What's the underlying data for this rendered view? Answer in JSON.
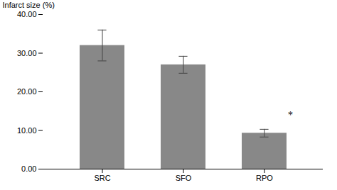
{
  "chart_data": {
    "type": "bar",
    "categories": [
      "SRC",
      "SFO",
      "RPO"
    ],
    "values": [
      32.0,
      27.0,
      9.3
    ],
    "errors": [
      4.0,
      2.2,
      1.0
    ],
    "color": "#888888",
    "ylabel": "Infarct size (%)",
    "ylim": [
      0,
      40
    ],
    "yticks": [
      {
        "value": 0,
        "label": "0.00"
      },
      {
        "value": 10,
        "label": "10.00"
      },
      {
        "value": 20,
        "label": "20.00"
      },
      {
        "value": 30,
        "label": "30.00"
      },
      {
        "value": 40,
        "label": "40.00"
      }
    ],
    "grid": false,
    "annotations": [
      {
        "text": "*",
        "category": "RPO",
        "y": 14.0
      }
    ]
  }
}
